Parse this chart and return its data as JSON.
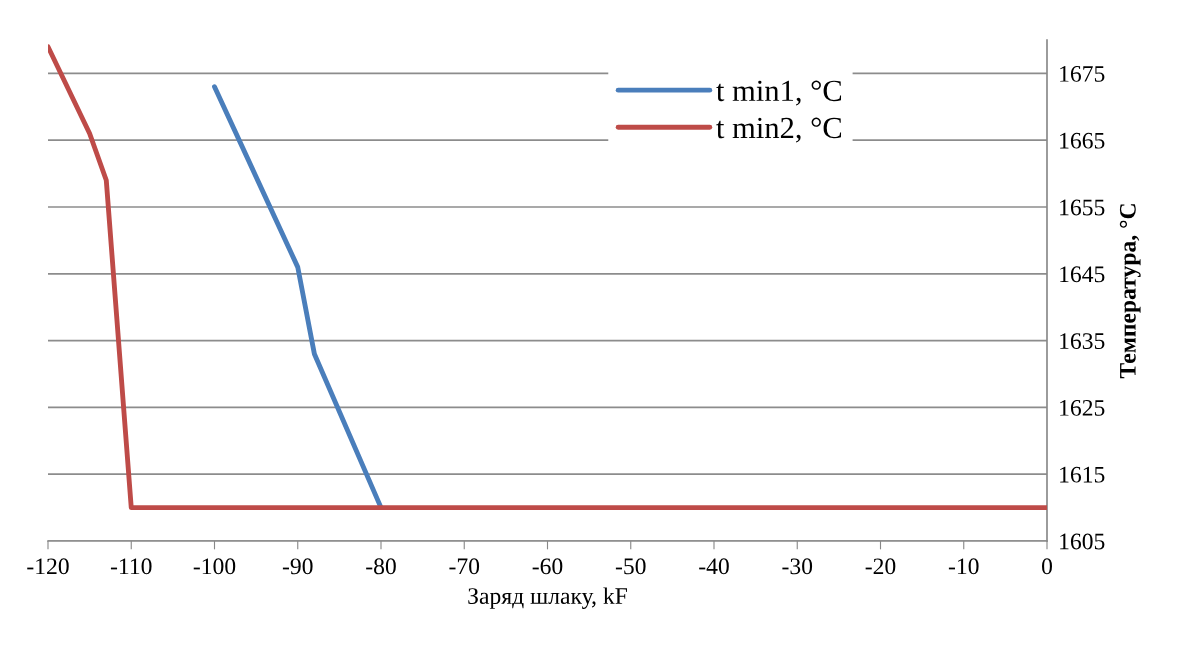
{
  "chart_data": {
    "type": "line",
    "xlabel": "Заряд шлаку, kF",
    "ylabel": "Температура, °C",
    "xlim": [
      -120,
      0
    ],
    "xticks": [
      -120,
      -110,
      -100,
      -90,
      -80,
      -70,
      -60,
      -50,
      -40,
      -30,
      -20,
      -10,
      0
    ],
    "ylim": [
      1605,
      1680
    ],
    "yticks": [
      1605,
      1615,
      1625,
      1635,
      1645,
      1655,
      1665,
      1675
    ],
    "grid": "y",
    "legend": "top right",
    "marker": "none",
    "line_style": "solid",
    "series": [
      {
        "name": "t min1, °C",
        "color": "#4a7ebb",
        "x": [
          -100,
          -90,
          -88,
          -80
        ],
        "values": [
          1673,
          1646,
          1633,
          1610
        ]
      },
      {
        "name": "t min2, °C",
        "color": "#be4b48",
        "x": [
          -120,
          -115,
          -113,
          -110,
          0
        ],
        "values": [
          1679,
          1666,
          1659,
          1610,
          1610
        ]
      }
    ]
  }
}
